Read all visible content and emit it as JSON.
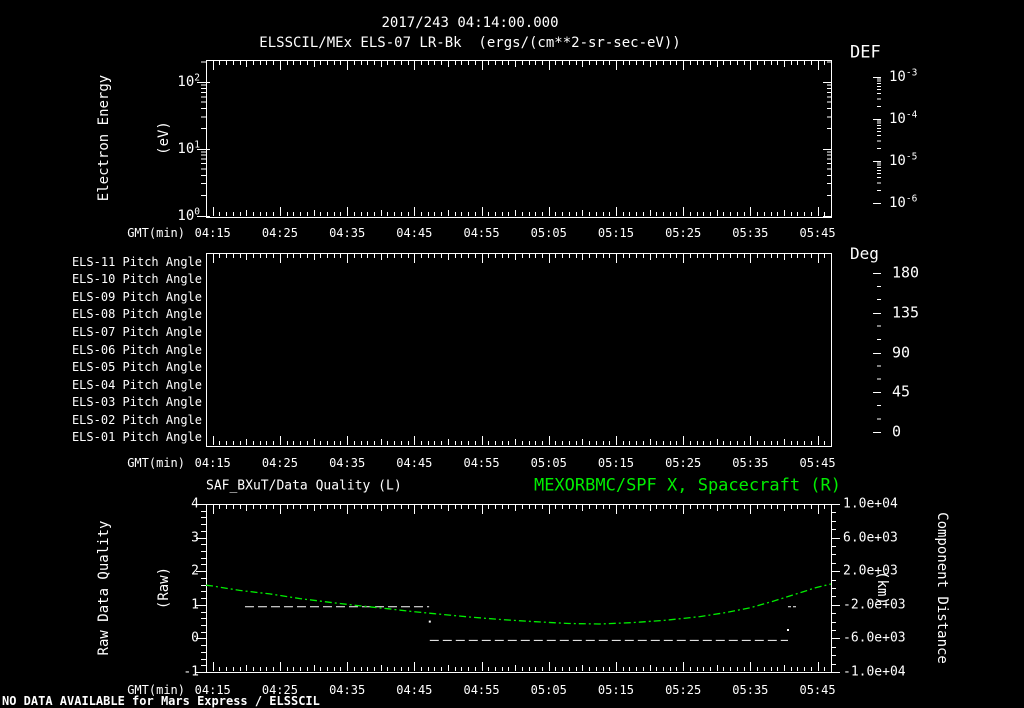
{
  "header": {
    "title_line1": "2017/243 04:14:00.000",
    "title_line2": "ELSSCIL/MEx ELS-07 LR-Bk  (ergs/(cm**2-sr-sec-eV))"
  },
  "colors": {
    "background": "#000000",
    "foreground": "#ffffff",
    "series_green": "#00ee00"
  },
  "time_axis": {
    "label": "GMT(min)",
    "ticks": [
      {
        "t": 1,
        "label": "04:15"
      },
      {
        "t": 11,
        "label": "04:25"
      },
      {
        "t": 21,
        "label": "04:35"
      },
      {
        "t": 31,
        "label": "04:45"
      },
      {
        "t": 41,
        "label": "04:55"
      },
      {
        "t": 51,
        "label": "05:05"
      },
      {
        "t": 61,
        "label": "05:15"
      },
      {
        "t": 71,
        "label": "05:25"
      },
      {
        "t": 81,
        "label": "05:35"
      },
      {
        "t": 91,
        "label": "05:45"
      }
    ]
  },
  "top_panel": {
    "ylabel_line1": "Electron Energy",
    "ylabel_line2": "(eV)",
    "ytick_base": "10",
    "ytick_exponents": [
      "0",
      "1",
      "2"
    ]
  },
  "def_colorbar": {
    "title": "DEF",
    "tick_base": "10",
    "tick_exponents": [
      "-3",
      "-4",
      "-5",
      "-6"
    ]
  },
  "pitch_panel": {
    "row_labels": [
      "ELS-11 Pitch Angle",
      "ELS-10 Pitch Angle",
      "ELS-09 Pitch Angle",
      "ELS-08 Pitch Angle",
      "ELS-07 Pitch Angle",
      "ELS-06 Pitch Angle",
      "ELS-05 Pitch Angle",
      "ELS-04 Pitch Angle",
      "ELS-03 Pitch Angle",
      "ELS-02 Pitch Angle",
      "ELS-01 Pitch Angle"
    ]
  },
  "deg_colorbar": {
    "title": "Deg",
    "tick_labels": [
      "180",
      "135",
      "90",
      "45",
      "0"
    ]
  },
  "bottom_panel": {
    "title_left": "SAF_BXuT/Data Quality (L)",
    "title_right": "MEXORBMC/SPF X, Spacecraft (R)",
    "ylabel_left_line1": "Raw Data Quality",
    "ylabel_left_line2": "(Raw)",
    "ylabel_right_line1": "Component Distance",
    "ylabel_right_line2": "(km)",
    "left_tick_labels": [
      "4",
      "3",
      "2",
      "1",
      "0",
      "-1"
    ],
    "right_tick_labels": [
      "1.0e+04",
      "6.0e+03",
      "2.0e+03",
      "-2.0e+03",
      "-6.0e+03",
      "-1.0e+04"
    ]
  },
  "footer": {
    "message": "NO DATA AVAILABLE for Mars Express / ELSSCIL"
  },
  "chart_data": [
    {
      "type": "heatmap",
      "title": "ELSSCIL/MEx ELS-07 LR-Bk (ergs/(cm**2-sr-sec-eV))",
      "xlabel": "GMT(min)",
      "ylabel": "Electron Energy (eV)",
      "x_tick_labels": [
        "04:15",
        "04:25",
        "04:35",
        "04:45",
        "04:55",
        "05:05",
        "05:15",
        "05:25",
        "05:35",
        "05:45"
      ],
      "y_scale": "log",
      "y_tick_values": [
        1,
        10,
        100
      ],
      "colorbar": {
        "title": "DEF",
        "scale": "log",
        "tick_values": [
          0.001,
          0.0001,
          1e-05,
          1e-06
        ]
      },
      "values": "no data (panel empty)"
    },
    {
      "type": "heatmap",
      "rows": [
        "ELS-11 Pitch Angle",
        "ELS-10 Pitch Angle",
        "ELS-09 Pitch Angle",
        "ELS-08 Pitch Angle",
        "ELS-07 Pitch Angle",
        "ELS-06 Pitch Angle",
        "ELS-05 Pitch Angle",
        "ELS-04 Pitch Angle",
        "ELS-03 Pitch Angle",
        "ELS-02 Pitch Angle",
        "ELS-01 Pitch Angle"
      ],
      "xlabel": "GMT(min)",
      "x_tick_labels": [
        "04:15",
        "04:25",
        "04:35",
        "04:45",
        "04:55",
        "05:05",
        "05:15",
        "05:25",
        "05:35",
        "05:45"
      ],
      "colorbar": {
        "title": "Deg",
        "tick_values": [
          180,
          135,
          90,
          45,
          0
        ]
      },
      "values": "no data (panel empty)"
    },
    {
      "type": "line",
      "xlabel": "GMT(min)",
      "x_minutes_after": "04:14",
      "x_range_minutes": [
        0,
        93
      ],
      "ylim_left": [
        -1,
        4
      ],
      "ylim_right": [
        -10000,
        10000
      ],
      "series": [
        {
          "name": "SAF_BXuT/Data Quality (L)",
          "axis": "left",
          "color": "#ffffff",
          "style": "dashed",
          "segments": [
            {
              "value": 1,
              "t_start": 5.8,
              "t_end": 33.2,
              "dash": "9 4"
            },
            {
              "value": 0,
              "t_start": 33.3,
              "t_end": 86.6,
              "dash": "9 4"
            },
            {
              "value": 1,
              "t_start": 86.6,
              "t_end": 87.8,
              "dash": "3 2"
            }
          ],
          "transition_dots": [
            {
              "t": 33.3,
              "value": 0.5
            },
            {
              "t": 86.6,
              "value": 0.25
            }
          ]
        },
        {
          "name": "MEXORBMC/SPF X, Spacecraft (R)",
          "axis": "right",
          "color": "#00ee00",
          "style": "dash-dot",
          "points": [
            [
              0,
              330
            ],
            [
              1,
              240
            ],
            [
              5,
              -280
            ],
            [
              9.5,
              -700
            ],
            [
              14,
              -1260
            ],
            [
              19,
              -1760
            ],
            [
              23,
              -2130
            ],
            [
              27,
              -2470
            ],
            [
              30.5,
              -2780
            ],
            [
              34,
              -3060
            ],
            [
              39,
              -3440
            ],
            [
              44,
              -3760
            ],
            [
              49,
              -4010
            ],
            [
              54,
              -4230
            ],
            [
              58.5,
              -4280
            ],
            [
              63.5,
              -4120
            ],
            [
              68.5,
              -3830
            ],
            [
              73.5,
              -3410
            ],
            [
              77.5,
              -2900
            ],
            [
              81,
              -2350
            ],
            [
              84.5,
              -1550
            ],
            [
              88.3,
              -590
            ],
            [
              90.7,
              40
            ],
            [
              93,
              480
            ]
          ]
        }
      ]
    }
  ]
}
